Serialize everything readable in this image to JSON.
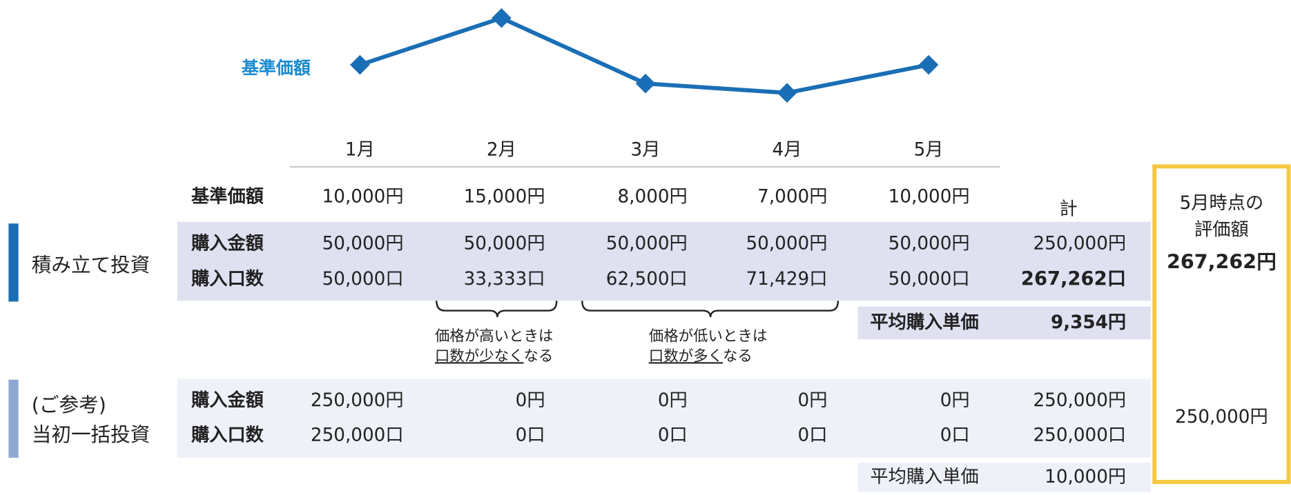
{
  "chart_data": {
    "type": "line",
    "categories": [
      "1月",
      "2月",
      "3月",
      "4月",
      "5月"
    ],
    "series": [
      {
        "name": "基準価額",
        "color": "#1a6eb5",
        "values": [
          10000,
          15000,
          8000,
          7000,
          10000
        ],
        "value_labels": [
          "10,000円",
          "15,000円",
          "8,000円",
          "7,000円",
          "10,000円"
        ]
      }
    ]
  },
  "table": {
    "total_label": "計",
    "valuation_header": [
      "5月時点の",
      "評価額"
    ],
    "sections": [
      {
        "title": [
          "積み立て投資"
        ],
        "rows": [
          {
            "label": "購入金額",
            "cells": [
              "50,000円",
              "50,000円",
              "50,000円",
              "50,000円",
              "50,000円",
              "250,000円"
            ]
          },
          {
            "label": "購入口数",
            "cells": [
              "50,000口",
              "33,333口",
              "62,500口",
              "71,429口",
              "50,000口",
              "267,262口"
            ]
          }
        ],
        "avg": {
          "label": "平均購入単価",
          "value": "9,354円"
        },
        "valuation": "267,262円"
      },
      {
        "title": [
          "(ご参考)",
          "当初一括投資"
        ],
        "rows": [
          {
            "label": "購入金額",
            "cells": [
              "250,000円",
              "0円",
              "0円",
              "0円",
              "0円",
              "250,000円"
            ]
          },
          {
            "label": "購入口数",
            "cells": [
              "250,000口",
              "0口",
              "0口",
              "0口",
              "0口",
              "250,000口"
            ]
          }
        ],
        "avg": {
          "label": "平均購入単価",
          "value": "10,000円"
        },
        "valuation": "250,000円"
      }
    ]
  },
  "notes": [
    {
      "line1": "価格が高いときは",
      "underlined": "口数が少なく",
      "rest": "なる"
    },
    {
      "line1": "価格が低いときは",
      "underlined": "口数が多く",
      "rest": "なる"
    }
  ]
}
